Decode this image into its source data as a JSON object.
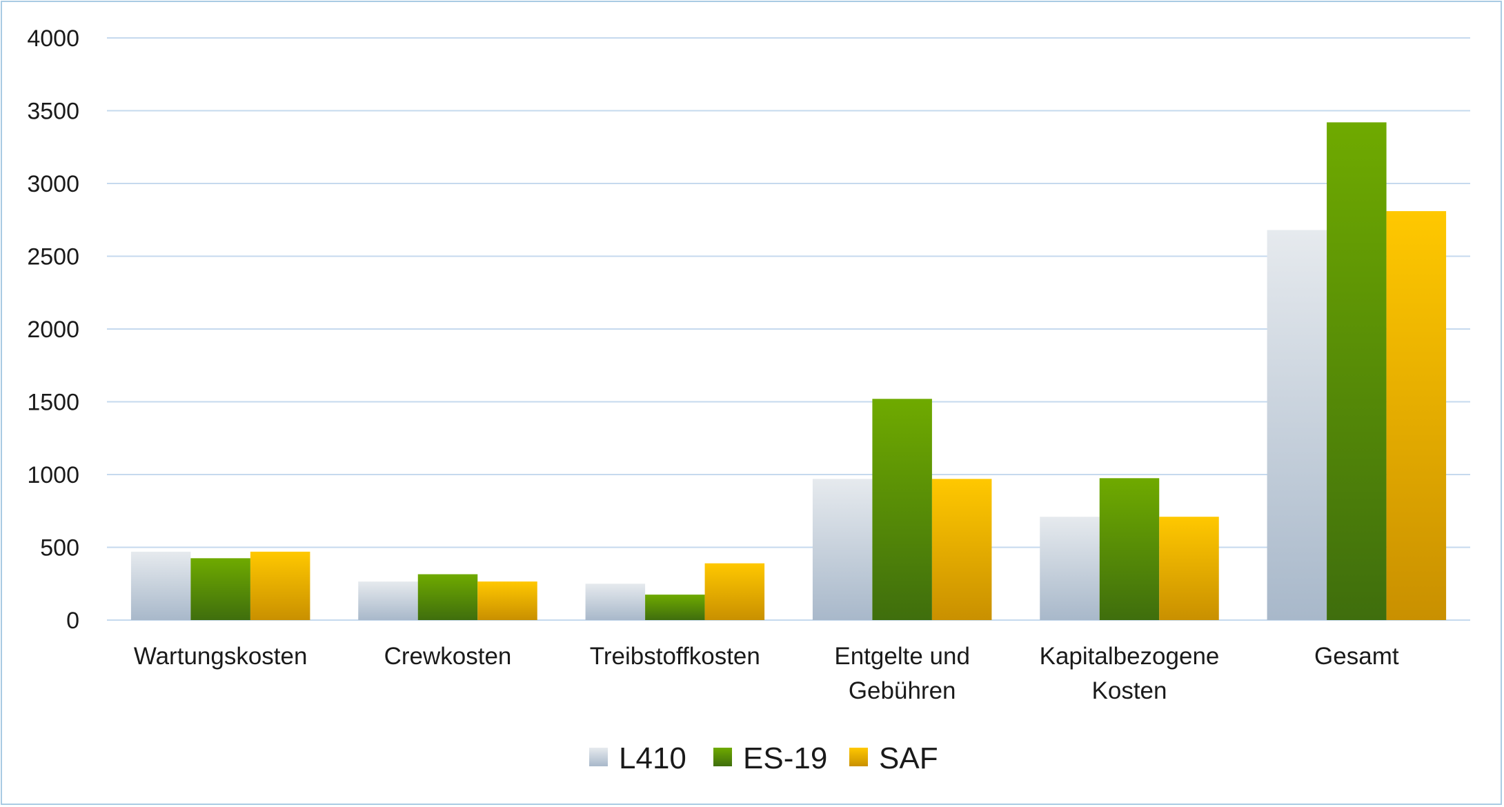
{
  "chart_data": {
    "type": "bar",
    "categories": [
      [
        "Wartungskosten"
      ],
      [
        "Crewkosten"
      ],
      [
        "Treibstoffkosten"
      ],
      [
        "Entgelte und",
        "Gebühren"
      ],
      [
        "Kapitalbezogene",
        "Kosten"
      ],
      [
        "Gesamt"
      ]
    ],
    "series": [
      {
        "name": "L410",
        "values": [
          470,
          265,
          250,
          970,
          710,
          2680
        ]
      },
      {
        "name": "ES-19",
        "values": [
          425,
          315,
          175,
          1520,
          975,
          3420
        ]
      },
      {
        "name": "SAF",
        "values": [
          470,
          265,
          390,
          970,
          710,
          2810
        ]
      }
    ],
    "title": "",
    "xlabel": "",
    "ylabel": "",
    "ylim": [
      0,
      4000
    ],
    "yticks": [
      0,
      500,
      1000,
      1500,
      2000,
      2500,
      3000,
      3500,
      4000
    ],
    "grid": "horizontal",
    "legend_position": "bottom",
    "colors": {
      "L410": {
        "top": "#e6eaee",
        "bottom": "#a8b8ca"
      },
      "ES-19": {
        "top": "#6faa00",
        "bottom": "#3f6e0d"
      },
      "SAF": {
        "top": "#ffc800",
        "bottom": "#c99000"
      },
      "gridline": "#c5d9ee",
      "frame": "#a9cbe3"
    }
  }
}
